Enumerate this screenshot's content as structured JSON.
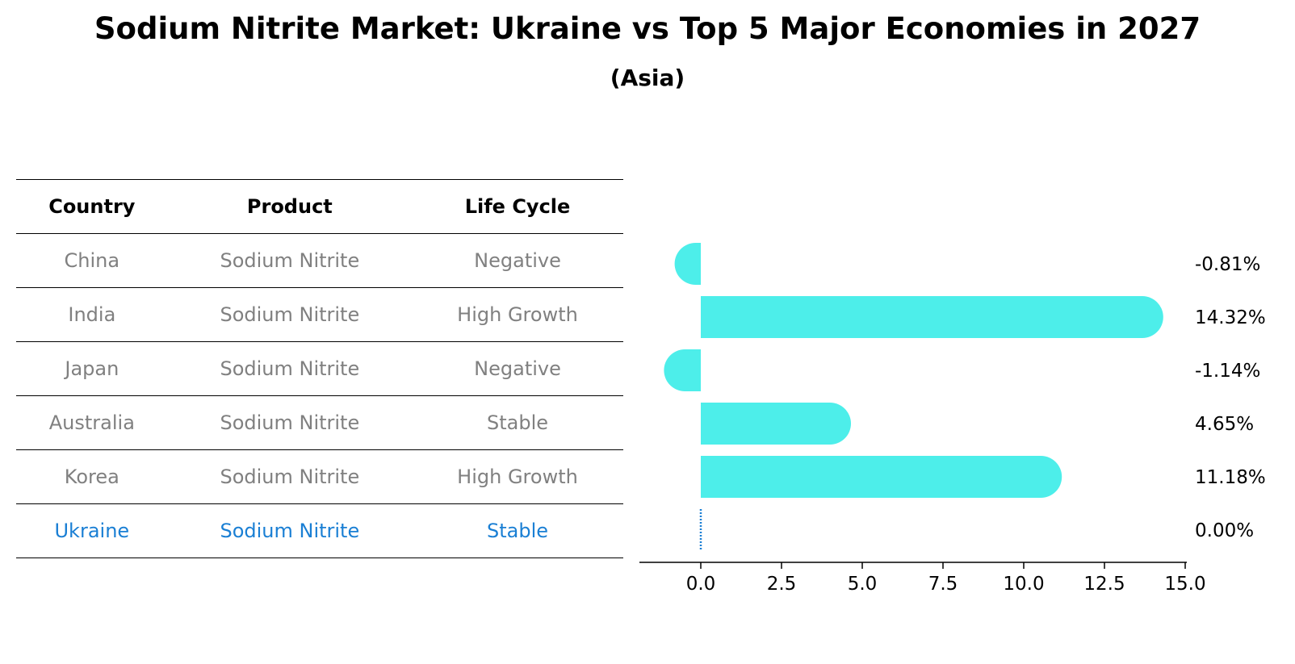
{
  "title": "Sodium Nitrite Market: Ukraine vs Top 5 Major Economies in 2027",
  "subtitle": "(Asia)",
  "table": {
    "headers": [
      "Country",
      "Product",
      "Life Cycle"
    ],
    "rows": [
      {
        "country": "China",
        "product": "Sodium Nitrite",
        "life_cycle": "Negative"
      },
      {
        "country": "India",
        "product": "Sodium Nitrite",
        "life_cycle": "High Growth"
      },
      {
        "country": "Japan",
        "product": "Sodium Nitrite",
        "life_cycle": "Negative"
      },
      {
        "country": "Australia",
        "product": "Sodium Nitrite",
        "life_cycle": "Stable"
      },
      {
        "country": "Korea",
        "product": "Sodium Nitrite",
        "life_cycle": "High Growth"
      },
      {
        "country": "Ukraine",
        "product": "Sodium Nitrite",
        "life_cycle": "Stable"
      }
    ]
  },
  "chart_data": {
    "type": "bar",
    "orientation": "horizontal",
    "categories": [
      "China",
      "India",
      "Japan",
      "Australia",
      "Korea",
      "Ukraine"
    ],
    "values": [
      -0.81,
      14.32,
      -1.14,
      4.65,
      11.18,
      0.0
    ],
    "value_labels": [
      "-0.81%",
      "14.32%",
      "-1.14%",
      "4.65%",
      "11.18%",
      "0.00%"
    ],
    "xlim": [
      -1.9,
      15.0
    ],
    "xticks": [
      0.0,
      2.5,
      5.0,
      7.5,
      10.0,
      12.5,
      15.0
    ],
    "xtick_labels": [
      "0.0",
      "2.5",
      "5.0",
      "7.5",
      "10.0",
      "12.5",
      "15.0"
    ],
    "highlight": "Ukraine",
    "colors": {
      "bar": "#4deeea",
      "highlight": "#1a7fd4",
      "axis": "#000000"
    }
  }
}
